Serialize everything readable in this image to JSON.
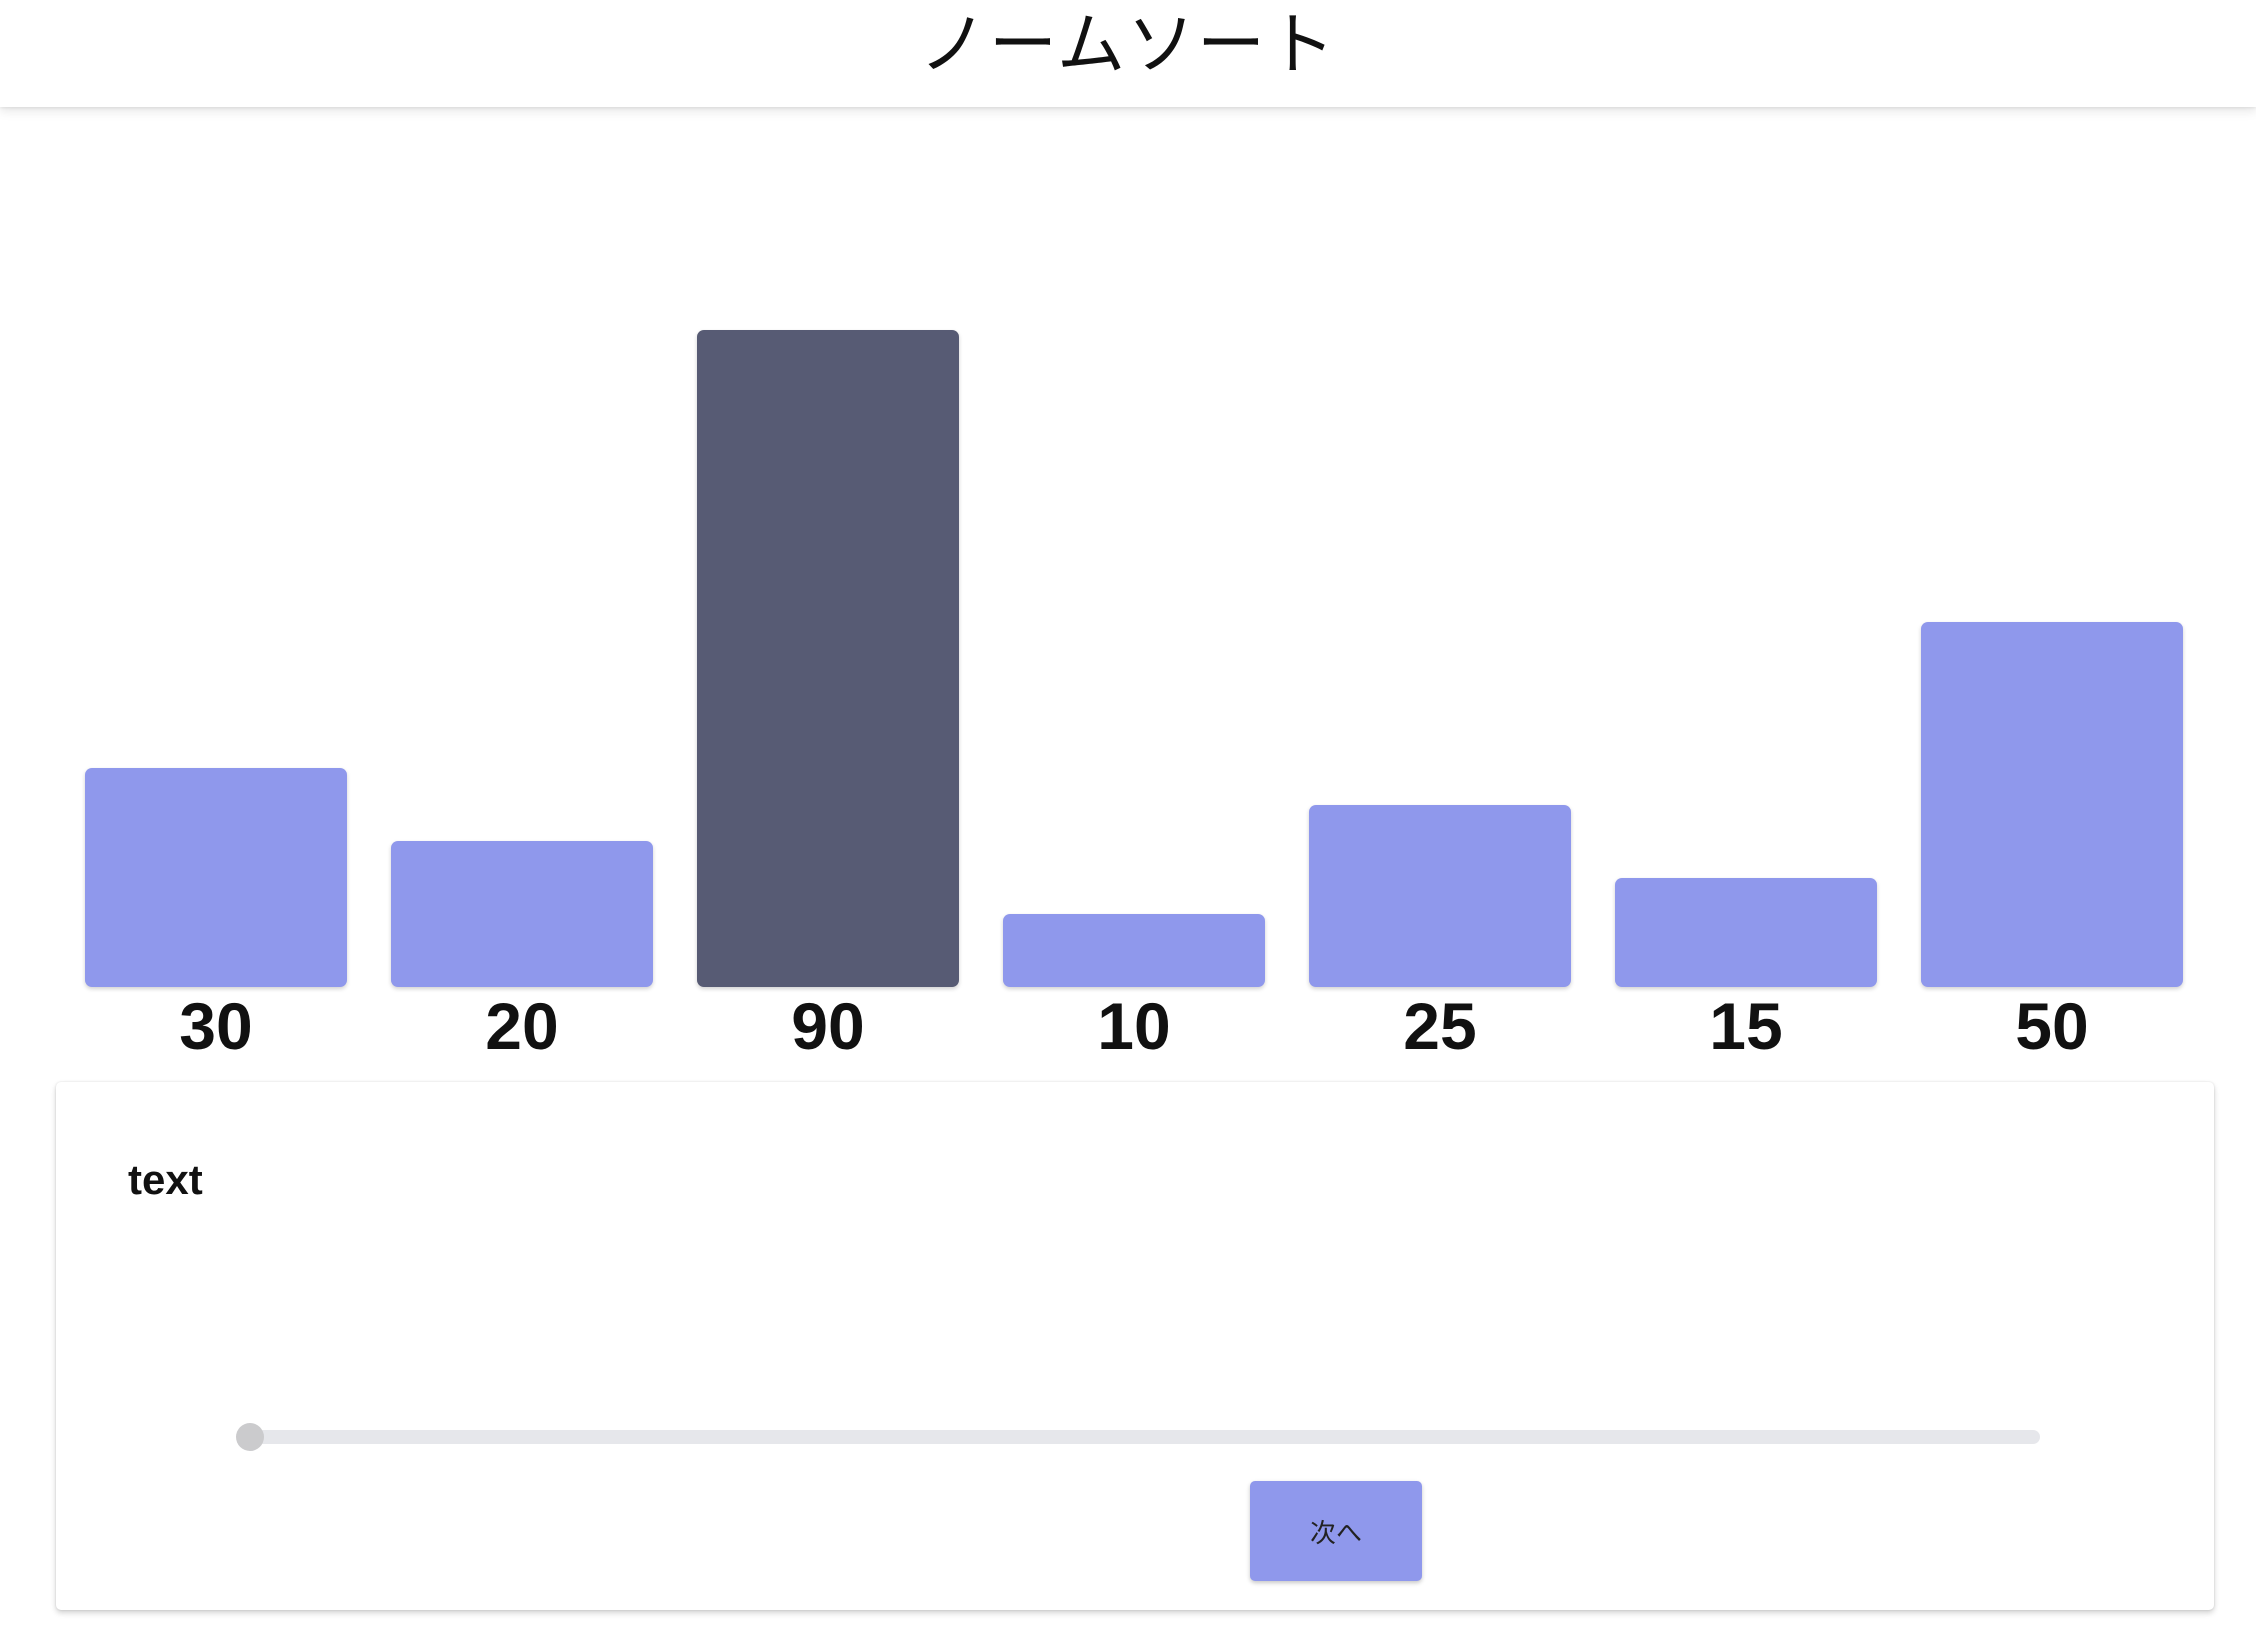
{
  "header": {
    "title": "ノームソート"
  },
  "chart_data": {
    "type": "bar",
    "categories": [
      "30",
      "20",
      "90",
      "10",
      "25",
      "15",
      "50"
    ],
    "values": [
      30,
      20,
      90,
      10,
      25,
      15,
      50
    ],
    "highlighted_index": 2,
    "colors": {
      "bar": "#8f98ec",
      "highlight": "#575b74"
    }
  },
  "panel": {
    "text": "text",
    "slider": {
      "min": 0,
      "max": 1,
      "value": 0
    },
    "next_button_label": "次へ"
  },
  "colors": {
    "accent": "#8f98ec",
    "highlight": "#575b74",
    "slider_track": "#e6e7eb",
    "slider_thumb": "#cbcbcd"
  }
}
